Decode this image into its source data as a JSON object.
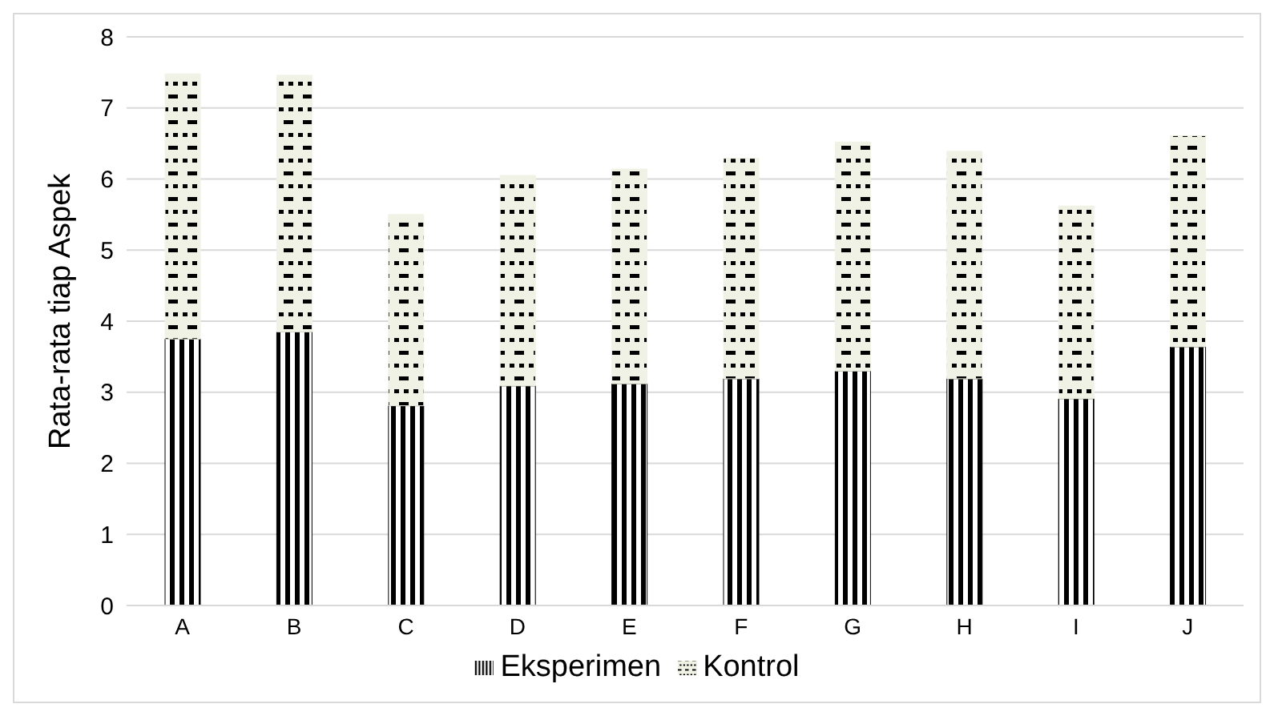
{
  "chart_data": {
    "type": "bar",
    "stacked": true,
    "ylabel": "Rata-rata tiap Aspek",
    "categories": [
      "A",
      "B",
      "C",
      "D",
      "E",
      "F",
      "G",
      "H",
      "I",
      "J"
    ],
    "series": [
      {
        "name": "Eksperimen",
        "color": "#000000",
        "values": [
          3.75,
          3.85,
          2.81,
          3.09,
          3.12,
          3.19,
          3.3,
          3.19,
          2.91,
          3.64
        ]
      },
      {
        "name": "Kontrol",
        "color": "#eff2e4",
        "values": [
          3.73,
          3.61,
          2.69,
          2.96,
          3.02,
          3.1,
          3.22,
          3.2,
          2.71,
          2.97
        ]
      }
    ],
    "ylim": [
      0,
      8
    ],
    "yticks": [
      0,
      1,
      2,
      3,
      4,
      5,
      6,
      7,
      8
    ],
    "grid": "y",
    "legend": "bottom"
  }
}
